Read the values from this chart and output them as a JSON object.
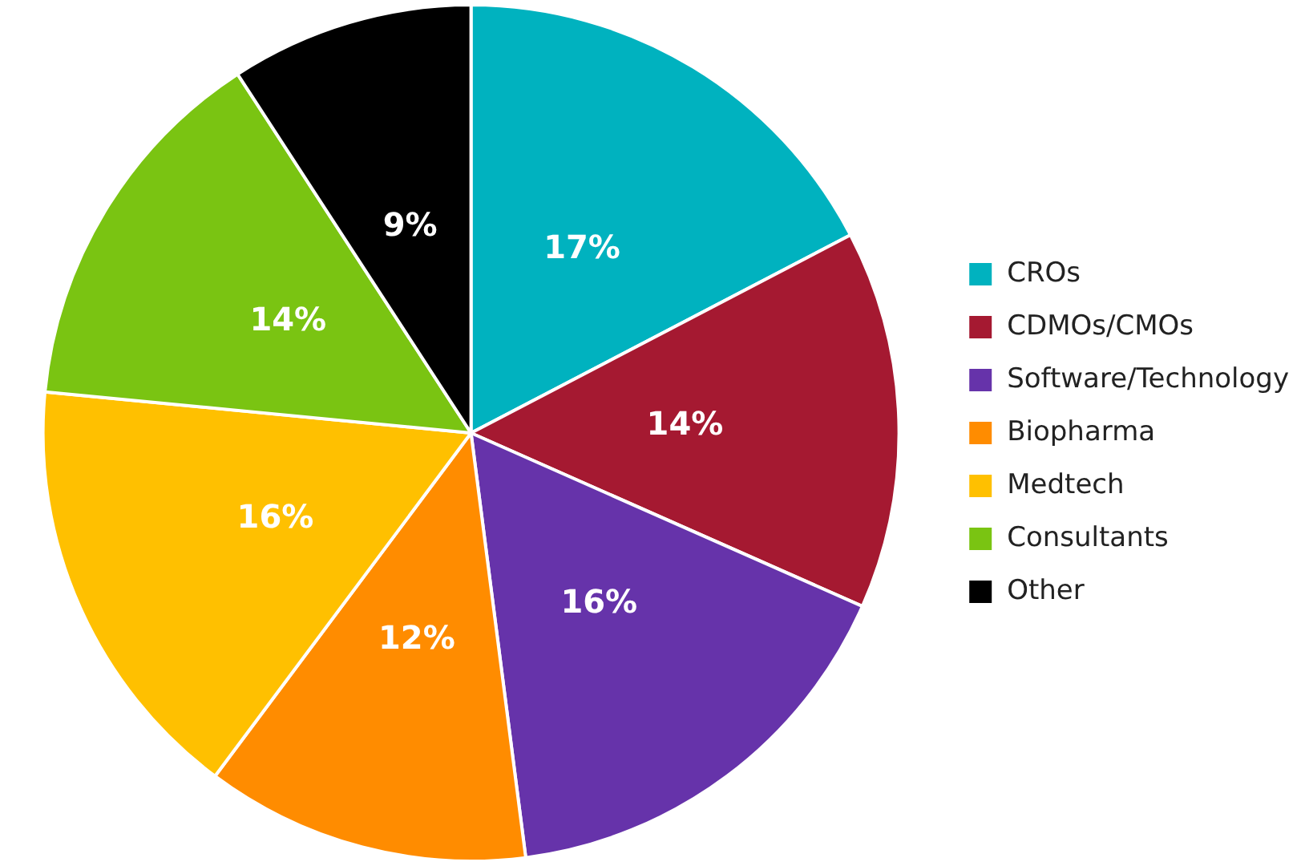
{
  "chart_data": {
    "type": "pie",
    "categories": [
      "CROs",
      "CDMOs/CMOs",
      "Software/Technology",
      "Biopharma",
      "Medtech",
      "Consultants",
      "Other"
    ],
    "values": [
      17,
      14,
      16,
      12,
      16,
      14,
      9
    ],
    "colors": [
      "#00b2bf",
      "#a51931",
      "#6633aa",
      "#ff8c00",
      "#ffc000",
      "#7ac412",
      "#000000"
    ],
    "value_labels": [
      "17%",
      "14%",
      "16%",
      "12%",
      "16%",
      "14%",
      "9%"
    ],
    "legend": "right"
  }
}
